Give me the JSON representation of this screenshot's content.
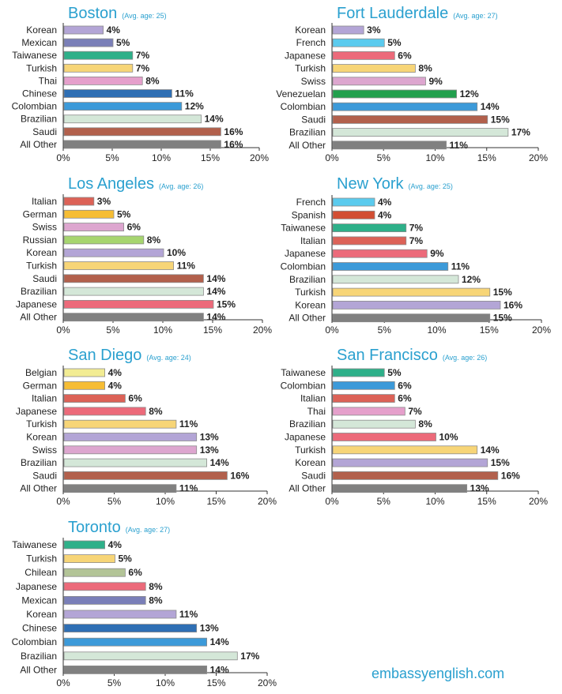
{
  "site_label": "embassyenglish.com",
  "colors": {
    "title": "#2aa0cf",
    "Korean": "#b3a5d6",
    "Mexican": "#7a7fb8",
    "Taiwanese": "#2eb089",
    "Turkish": "#f7d577",
    "Thai": "#e59fcb",
    "Chinese": "#2f6fb4",
    "Colombian": "#3c9ad9",
    "Brazilian": "#d4e7d8",
    "Saudi": "#b2604c",
    "All Other": "#808080",
    "French": "#5bcbee",
    "Japanese": "#ec6a7a",
    "Swiss": "#dda6cf",
    "Venezuelan": "#21a04d",
    "Italian": "#dc6257",
    "German": "#f6bd34",
    "Russian": "#a6d56f",
    "Spanish": "#d24e33",
    "Belgian": "#f2ec93",
    "Chilean": "#b3c497"
  },
  "chart_data": [
    {
      "type": "bar",
      "title": "Boston",
      "subtitle": "(Avg. age: 25)",
      "categories": [
        "Korean",
        "Mexican",
        "Taiwanese",
        "Turkish",
        "Thai",
        "Chinese",
        "Colombian",
        "Brazilian",
        "Saudi",
        "All Other"
      ],
      "values": [
        4,
        5,
        7,
        7,
        8,
        11,
        12,
        14,
        16,
        16
      ],
      "labels": [
        "4%",
        "5%",
        "7%",
        "7%",
        "8%",
        "11%",
        "12%",
        "14%",
        "16%",
        "16%"
      ],
      "xticks": [
        "0%",
        "5%",
        "10%",
        "15%",
        "20%"
      ],
      "xlim": [
        0,
        20
      ]
    },
    {
      "type": "bar",
      "title": "Fort Lauderdale",
      "subtitle": "(Avg. age: 27)",
      "categories": [
        "Korean",
        "French",
        "Japanese",
        "Turkish",
        "Swiss",
        "Venezuelan",
        "Colombian",
        "Saudi",
        "Brazilian",
        "All Other"
      ],
      "values": [
        3,
        5,
        6,
        8,
        9,
        12,
        14,
        15,
        17,
        11
      ],
      "labels": [
        "3%",
        "5%",
        "6%",
        "8%",
        "9%",
        "12%",
        "14%",
        "15%",
        "17%",
        "11%"
      ],
      "xticks": [
        "0%",
        "5%",
        "10%",
        "15%",
        "20%"
      ],
      "xlim": [
        0,
        20
      ]
    },
    {
      "type": "bar",
      "title": "Los Angeles",
      "subtitle": "(Avg. age: 26)",
      "categories": [
        "Italian",
        "German",
        "Swiss",
        "Russian",
        "Korean",
        "Turkish",
        "Saudi",
        "Brazilian",
        "Japanese",
        "All Other"
      ],
      "values": [
        3,
        5,
        6,
        8,
        10,
        11,
        14,
        14,
        15,
        14
      ],
      "labels": [
        "3%",
        "5%",
        "6%",
        "8%",
        "10%",
        "11%",
        "14%",
        "14%",
        "15%",
        "14%"
      ],
      "xticks": [
        "0%",
        "5%",
        "10%",
        "15%",
        "20%"
      ],
      "xlim": [
        0,
        20
      ]
    },
    {
      "type": "bar",
      "title": "New York",
      "subtitle": "(Avg. age: 25)",
      "categories": [
        "French",
        "Spanish",
        "Taiwanese",
        "Italian",
        "Japanese",
        "Colombian",
        "Brazilian",
        "Turkish",
        "Korean",
        "All Other"
      ],
      "values": [
        4,
        4,
        7,
        7,
        9,
        11,
        12,
        15,
        16,
        15
      ],
      "labels": [
        "4%",
        "4%",
        "7%",
        "7%",
        "9%",
        "11%",
        "12%",
        "15%",
        "16%",
        "15%"
      ],
      "xticks": [
        "0%",
        "5%",
        "10%",
        "15%",
        "20%"
      ],
      "xlim": [
        0,
        20
      ]
    },
    {
      "type": "bar",
      "title": "San Diego",
      "subtitle": "(Avg. age: 24)",
      "categories": [
        "Belgian",
        "German",
        "Italian",
        "Japanese",
        "Turkish",
        "Korean",
        "Swiss",
        "Brazilian",
        "Saudi",
        "All Other"
      ],
      "values": [
        4,
        4,
        6,
        8,
        11,
        13,
        13,
        14,
        16,
        11
      ],
      "labels": [
        "4%",
        "4%",
        "6%",
        "8%",
        "11%",
        "13%",
        "13%",
        "14%",
        "16%",
        "11%"
      ],
      "xticks": [
        "0%",
        "5%",
        "10%",
        "15%",
        "20%"
      ],
      "xlim": [
        0,
        20
      ]
    },
    {
      "type": "bar",
      "title": "San Francisco",
      "subtitle": "(Avg. age: 26)",
      "categories": [
        "Taiwanese",
        "Colombian",
        "Italian",
        "Thai",
        "Brazilian",
        "Japanese",
        "Turkish",
        "Korean",
        "Saudi",
        "All Other"
      ],
      "values": [
        5,
        6,
        6,
        7,
        8,
        10,
        14,
        15,
        16,
        13
      ],
      "labels": [
        "5%",
        "6%",
        "6%",
        "7%",
        "8%",
        "10%",
        "14%",
        "15%",
        "16%",
        "13%"
      ],
      "xticks": [
        "0%",
        "5%",
        "10%",
        "15%",
        "20%"
      ],
      "xlim": [
        0,
        20
      ]
    },
    {
      "type": "bar",
      "title": "Toronto",
      "subtitle": "(Avg. age: 27)",
      "categories": [
        "Taiwanese",
        "Turkish",
        "Chilean",
        "Japanese",
        "Mexican",
        "Korean",
        "Chinese",
        "Colombian",
        "Brazilian",
        "All Other"
      ],
      "values": [
        4,
        5,
        6,
        8,
        8,
        11,
        13,
        14,
        17,
        14
      ],
      "labels": [
        "4%",
        "5%",
        "6%",
        "8%",
        "8%",
        "11%",
        "13%",
        "14%",
        "17%",
        "14%"
      ],
      "xticks": [
        "0%",
        "5%",
        "10%",
        "15%",
        "20%"
      ],
      "xlim": [
        0,
        20
      ]
    }
  ]
}
